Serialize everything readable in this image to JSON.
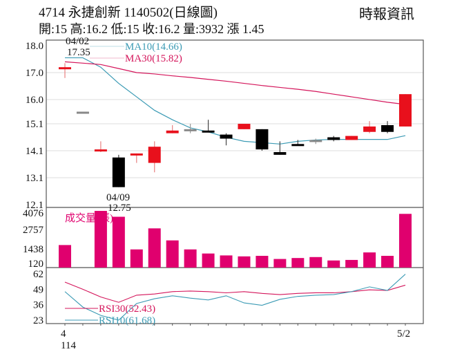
{
  "header": {
    "title": "4714  永捷創新 1140502(日線圖)",
    "summary": "開:15 高:16.2 低:15 收:16.2 量:3932 漲 1.45",
    "brand": "時報資訊"
  },
  "colors": {
    "up": "#e8101c",
    "down": "#000000",
    "ma10": "#3a9ab4",
    "ma30": "#d4145a",
    "volume": "#e0006e",
    "rsi30": "#d4145a",
    "rsi10": "#3a9ab4",
    "grid": "#dddddd",
    "frame": "#555555"
  },
  "chart_data": [
    {
      "type": "candlestick",
      "title": "4714 永捷創新 1140502(日線圖)",
      "ylim": [
        12.1,
        18.0
      ],
      "yticks": [
        "18.0",
        "17.0",
        "16.0",
        "15.1",
        "14.1",
        "13.1",
        "12.1"
      ],
      "ytick_values": [
        18.0,
        17.0,
        16.0,
        15.1,
        14.1,
        13.1,
        12.1
      ],
      "x_start_label": "4",
      "x_start_sublabel": "114",
      "x_end_label": "5/2",
      "annotations": [
        {
          "date": "04/02",
          "value": "17.35",
          "kind": "high"
        },
        {
          "date": "04/09",
          "value": "12.75",
          "kind": "low"
        }
      ],
      "candles": [
        {
          "open": 17.15,
          "high": 17.35,
          "low": 16.8,
          "close": 17.2,
          "dir": "up"
        },
        {
          "open": 15.55,
          "high": 15.55,
          "low": 15.55,
          "close": 15.55,
          "dir": "flat"
        },
        {
          "open": 14.1,
          "high": 14.45,
          "low": 14.05,
          "close": 14.15,
          "dir": "up"
        },
        {
          "open": 13.85,
          "high": 13.95,
          "low": 12.75,
          "close": 12.75,
          "dir": "down"
        },
        {
          "open": 13.95,
          "high": 14.0,
          "low": 13.65,
          "close": 14.0,
          "dir": "up"
        },
        {
          "open": 13.65,
          "high": 14.45,
          "low": 13.3,
          "close": 14.25,
          "dir": "up"
        },
        {
          "open": 14.75,
          "high": 15.05,
          "low": 14.75,
          "close": 14.85,
          "dir": "up"
        },
        {
          "open": 14.9,
          "high": 15.1,
          "low": 14.75,
          "close": 14.9,
          "dir": "flat"
        },
        {
          "open": 14.85,
          "high": 15.25,
          "low": 14.8,
          "close": 14.85,
          "dir": "down"
        },
        {
          "open": 14.7,
          "high": 14.75,
          "low": 14.3,
          "close": 14.55,
          "dir": "down"
        },
        {
          "open": 14.9,
          "high": 15.0,
          "low": 14.9,
          "close": 15.1,
          "dir": "up"
        },
        {
          "open": 14.9,
          "high": 14.9,
          "low": 14.1,
          "close": 14.15,
          "dir": "down"
        },
        {
          "open": 14.05,
          "high": 14.45,
          "low": 13.95,
          "close": 13.95,
          "dir": "down"
        },
        {
          "open": 14.35,
          "high": 14.5,
          "low": 14.3,
          "close": 14.3,
          "dir": "down"
        },
        {
          "open": 14.5,
          "high": 14.55,
          "low": 14.35,
          "close": 14.5,
          "dir": "flat"
        },
        {
          "open": 14.6,
          "high": 14.65,
          "low": 14.45,
          "close": 14.5,
          "dir": "down"
        },
        {
          "open": 14.5,
          "high": 14.65,
          "low": 14.5,
          "close": 14.65,
          "dir": "up"
        },
        {
          "open": 14.8,
          "high": 15.2,
          "low": 14.75,
          "close": 15.0,
          "dir": "up"
        },
        {
          "open": 15.05,
          "high": 15.2,
          "low": 14.75,
          "close": 14.8,
          "dir": "down"
        },
        {
          "open": 15.0,
          "high": 16.2,
          "low": 15.0,
          "close": 16.2,
          "dir": "up"
        }
      ],
      "series": [
        {
          "name": "MA10",
          "label": "MA10(14.66)",
          "values": [
            17.55,
            17.55,
            17.2,
            16.6,
            16.1,
            15.6,
            15.25,
            14.95,
            14.8,
            14.6,
            14.45,
            14.4,
            14.35,
            14.45,
            14.5,
            14.52,
            14.52,
            14.52,
            14.52,
            14.66
          ]
        },
        {
          "name": "MA30",
          "label": "MA30(15.82)",
          "values": [
            17.4,
            17.35,
            17.3,
            17.15,
            17.0,
            16.95,
            16.88,
            16.82,
            16.75,
            16.68,
            16.6,
            16.52,
            16.45,
            16.38,
            16.3,
            16.2,
            16.1,
            16.0,
            15.9,
            15.82
          ]
        }
      ]
    },
    {
      "type": "bar",
      "title": "成交量(張)",
      "ylim": [
        120,
        4076
      ],
      "yticks": [
        "4076",
        "2757",
        "1438",
        "120"
      ],
      "values": [
        1650,
        0,
        4150,
        3720,
        1330,
        2870,
        1990,
        1330,
        1030,
        890,
        820,
        860,
        630,
        700,
        770,
        520,
        560,
        1110,
        860,
        3932
      ]
    },
    {
      "type": "line",
      "title": "RSI",
      "ylim": [
        23,
        62
      ],
      "yticks": [
        "62",
        "49",
        "36",
        "23"
      ],
      "series": [
        {
          "name": "RSI30",
          "label": "RSI30(52.43)",
          "values": [
            55,
            49,
            42.5,
            38,
            44,
            45,
            47,
            47.5,
            47,
            46,
            47,
            45.5,
            44.5,
            45.5,
            46,
            46,
            47,
            48.5,
            48,
            52.43
          ]
        },
        {
          "name": "RSI10",
          "label": "RSI10(61.68)",
          "values": [
            47,
            34,
            27,
            23,
            37,
            41,
            43.5,
            41.5,
            40,
            43.5,
            37.5,
            35.5,
            40.5,
            43,
            44,
            44.5,
            47,
            51,
            48,
            61.68
          ]
        }
      ]
    }
  ]
}
